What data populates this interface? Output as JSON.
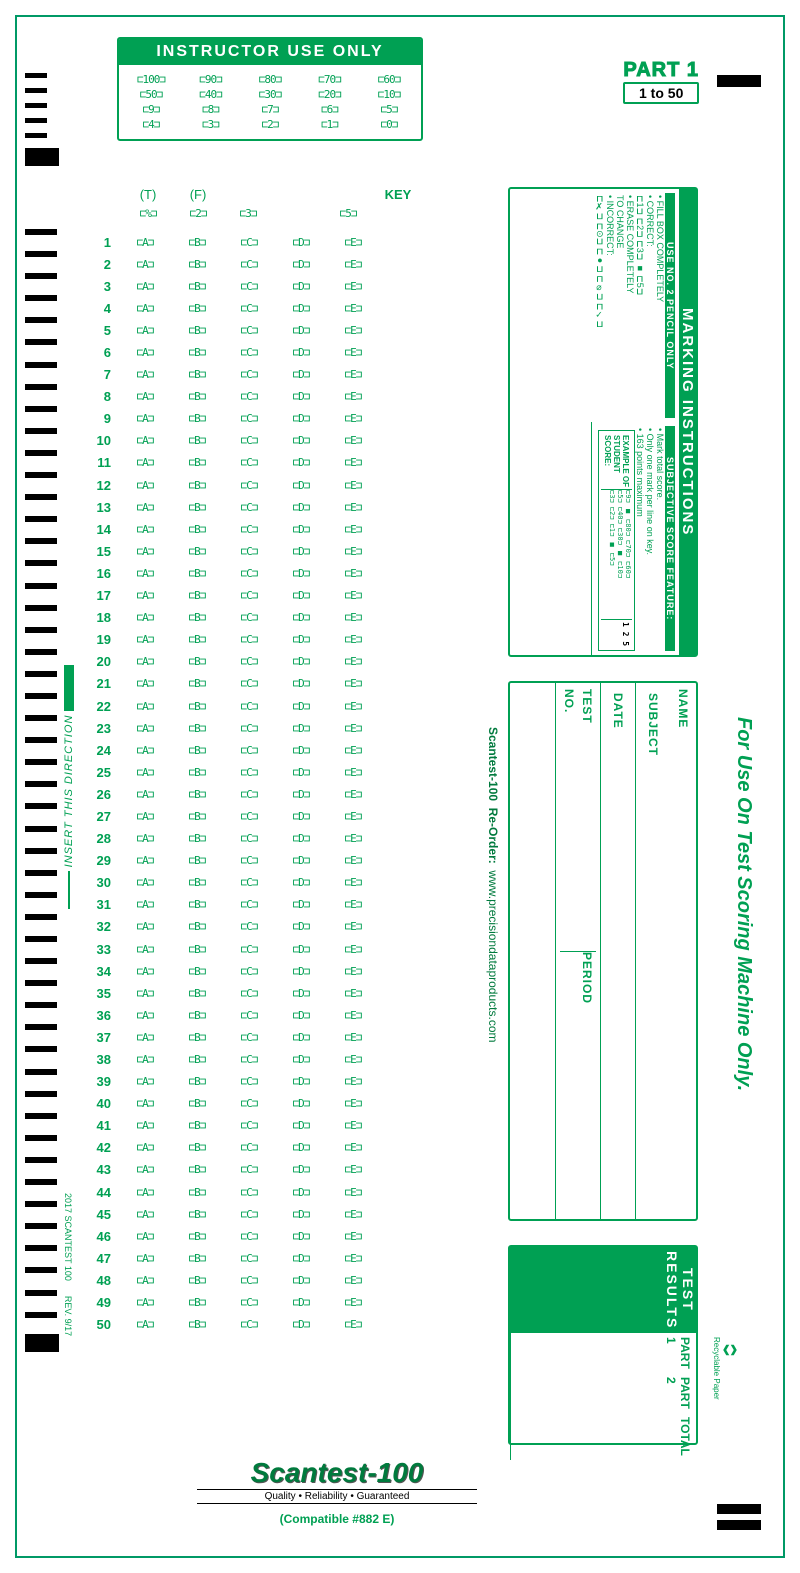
{
  "colors": {
    "green": "#00a053",
    "lightgreen": "#d8efe3",
    "black": "#000000"
  },
  "instructor": {
    "title": "INSTRUCTOR  USE  ONLY",
    "rows": [
      [
        "100",
        "90",
        "80",
        "70",
        "60"
      ],
      [
        "50",
        "40",
        "30",
        "20",
        "10"
      ],
      [
        "9",
        "8",
        "7",
        "6",
        "5"
      ],
      [
        "4",
        "3",
        "2",
        "1",
        "0"
      ]
    ]
  },
  "part": {
    "label": "PART 1",
    "range": "1 to 50"
  },
  "tf": {
    "t": "(T)",
    "f": "(F)",
    "key": "KEY"
  },
  "pct": {
    "pct": "%",
    "two": "2",
    "three": "3",
    "five": "5"
  },
  "answers": {
    "count": 50,
    "options": [
      "A",
      "B",
      "C",
      "D",
      "E"
    ],
    "shaded_ranges": [
      [
        11,
        20
      ],
      [
        31,
        40
      ]
    ]
  },
  "insert_direction": "INSERT THIS DIRECTION",
  "marking": {
    "title": "MARKING INSTRUCTIONS",
    "right": {
      "header": "USE NO. 2 PENCIL ONLY",
      "lines": [
        "• FILL BOX COMPLETELY",
        "• CORRECT:",
        "⊏1⊐  ⊏2⊐  ⊏3⊐  ■  ⊏5⊐",
        "• ERASE COMPLETELY",
        "  TO CHANGE",
        "• INCORRECT:",
        "⊏✗⊐  ⊏⊙⊐  ⊏●⊐  ⊏⌀⊐  ⊏✓⊐"
      ]
    },
    "left": {
      "header": "SUBJECTIVE SCORE FEATURE:",
      "lines": [
        "• Mark total score.",
        "• Only one mark per line on key.",
        "• 163 points maximum"
      ],
      "example_label": "EXAMPLE OF\nSTUDENT\nSCORE:",
      "example_score": "1 2 5",
      "grid": [
        [
          "⊏9⊐",
          "■",
          "⊏80⊐",
          "⊏70⊐",
          "⊏60⊐"
        ],
        [
          "⊏5⊐",
          "⊏40⊐",
          "⊏30⊐",
          "■",
          "⊏10⊐"
        ],
        [
          "⊏3⊐",
          "⊏2⊐",
          "⊏1⊐",
          "■",
          "⊏5⊐"
        ]
      ]
    }
  },
  "student": {
    "fields": [
      "NAME",
      "SUBJECT",
      "DATE",
      "TEST\nNO.",
      "PERIOD"
    ]
  },
  "reorder": {
    "brand": "Scantest-100",
    "label": "Re-Order:",
    "url": "www.precisiondataproducts.com"
  },
  "machine_only": "For Use On Test Scoring Machine Only.",
  "results": {
    "title": "TEST RESULTS",
    "rows": [
      "PART 1",
      "PART 2",
      "TOTAL"
    ]
  },
  "recycle": "Recyclable Paper",
  "logo": {
    "brand": "Scantest-100",
    "tag": "Quality • Reliability • Guaranteed",
    "compat": "(Compatible #882 E)"
  },
  "footer_left": {
    "a": "2017 SCANTEST 100",
    "b": "REV. 9/17"
  }
}
